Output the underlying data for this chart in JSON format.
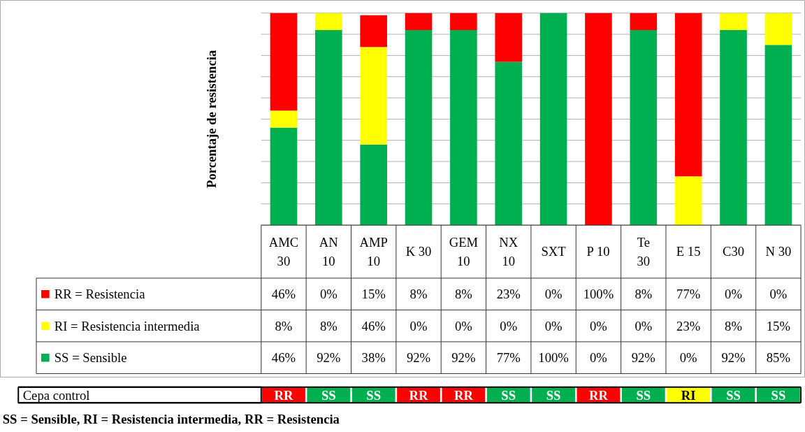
{
  "chart_data": [
    {
      "type": "bar",
      "stacked": true,
      "ylabel": "Porcentaje de resistencia",
      "categories": [
        "AMC\n30",
        "AN\n10",
        "AMP\n10",
        "K 30",
        "GEM\n10",
        "NX\n10",
        "SXT",
        "P 10",
        "Te\n30",
        "E 15",
        "C30",
        "N 30"
      ],
      "series": [
        {
          "name": "SS = Sensible",
          "color": "#00b050",
          "values": [
            46,
            92,
            38,
            92,
            92,
            77,
            100,
            0,
            92,
            0,
            92,
            85
          ],
          "value_labels": [
            "46%",
            "92%",
            "38%",
            "92%",
            "92%",
            "77%",
            "100%",
            "0%",
            "92%",
            "0%",
            "92%",
            "85%"
          ]
        },
        {
          "name": "RI = Resistencia intermedia",
          "color": "#ffff00",
          "values": [
            8,
            8,
            46,
            0,
            0,
            0,
            0,
            0,
            0,
            23,
            8,
            15
          ],
          "value_labels": [
            "8%",
            "8%",
            "46%",
            "0%",
            "0%",
            "0%",
            "0%",
            "0%",
            "0%",
            "23%",
            "8%",
            "15%"
          ]
        },
        {
          "name": "RR = Resistencia",
          "color": "#ff0000",
          "values": [
            46,
            0,
            15,
            8,
            8,
            23,
            0,
            100,
            8,
            77,
            0,
            0
          ],
          "value_labels": [
            "46%",
            "0%",
            "15%",
            "8%",
            "8%",
            "23%",
            "0%",
            "100%",
            "8%",
            "77%",
            "0%",
            "0%"
          ]
        }
      ],
      "ylim": [
        0,
        100
      ],
      "yticks": [
        {
          "value": 0,
          "label": null
        },
        {
          "value": 10,
          "label": null
        },
        {
          "value": 20,
          "label": null
        },
        {
          "value": 30,
          "label": null
        },
        {
          "value": 40,
          "label": null
        },
        {
          "value": 50,
          "label": null
        },
        {
          "value": 60,
          "label": null
        },
        {
          "value": 70,
          "label": null
        },
        {
          "value": 80,
          "label": null
        },
        {
          "value": 90,
          "label": null
        },
        {
          "value": 100,
          "label": null
        }
      ],
      "grid": "y",
      "legend": "bottom left",
      "tick_labels": "x"
    },
    {
      "type": "other",
      "y_categories": [
        "Cepa control"
      ],
      "cell_labels": [
        [
          "RR",
          "SS",
          "SS",
          "RR",
          "RR",
          "SS",
          "SS",
          "RR",
          "SS",
          "RI",
          "SS",
          "SS"
        ]
      ],
      "colors": [
        "#ff0000",
        "#00b050",
        "#00b050",
        "#ff0000",
        "#ff0000",
        "#00b050",
        "#00b050",
        "#ff0000",
        "#00b050",
        "#ffff00",
        "#00b050",
        "#00b050"
      ],
      "annotations": [
        "SS = Sensible, RI = Resistencia intermedia, RR = Resistencia"
      ]
    }
  ]
}
